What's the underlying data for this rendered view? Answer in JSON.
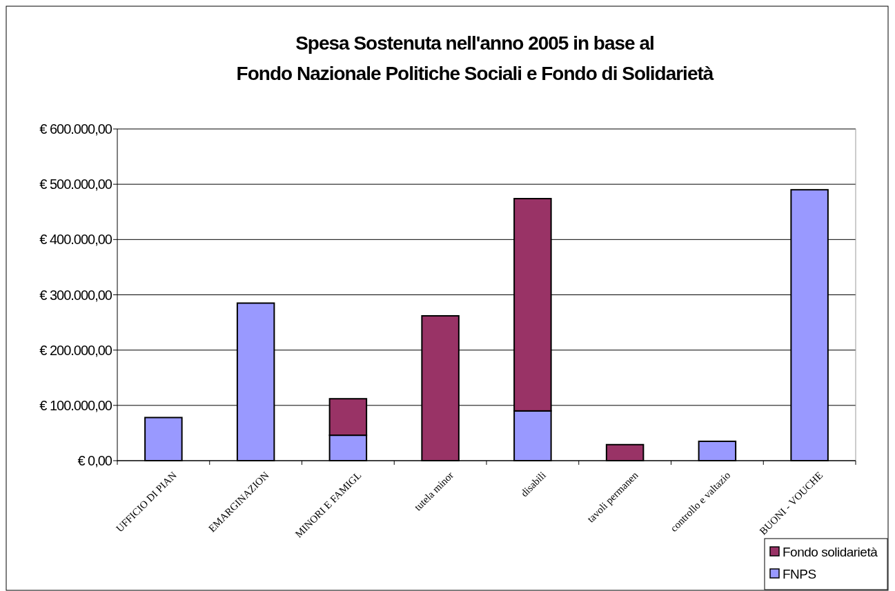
{
  "chart_data": {
    "type": "bar",
    "title": "Spesa Sostenuta nell'anno 2005 in base al\nFondo Nazionale Politiche Sociali e Fondo di Solidarietà",
    "stacked": true,
    "categories": [
      "UFFICIO DI PIAN",
      "EMARGINAZION",
      "MINORI E FAMIGL",
      "tutela minor",
      "disabili",
      "tavoli permanen",
      "controllo e valtazio",
      "BUONI - VOUCHE"
    ],
    "series": [
      {
        "name": "FNPS",
        "color": "#9999ff",
        "values": [
          78000,
          285000,
          46000,
          null,
          90000,
          null,
          35000,
          490000
        ]
      },
      {
        "name": "Fondo solidarietà",
        "color": "#993366",
        "values": [
          null,
          null,
          66000,
          262000,
          384000,
          29000,
          null,
          null
        ]
      }
    ],
    "ylim": [
      0,
      600000
    ],
    "yticks": [
      {
        "value": 0,
        "label": "€ 0,00"
      },
      {
        "value": 100000,
        "label": "€ 100.000,00"
      },
      {
        "value": 200000,
        "label": "€ 200.000,00"
      },
      {
        "value": 300000,
        "label": "€ 300.000,00"
      },
      {
        "value": 400000,
        "label": "€ 400.000,00"
      },
      {
        "value": 500000,
        "label": "€ 500.000,00"
      },
      {
        "value": 600000,
        "label": "€ 600.000,00"
      }
    ],
    "grid": "y",
    "legend": "bottom right"
  }
}
